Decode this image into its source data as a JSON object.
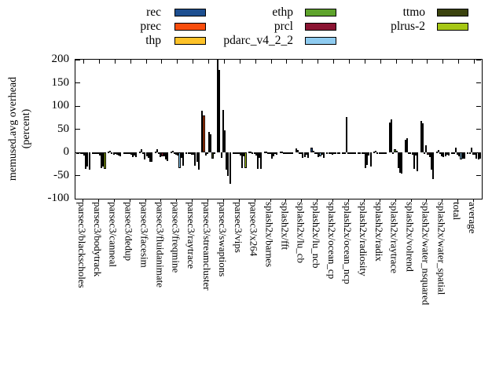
{
  "chart_data": {
    "type": "bar",
    "title": "",
    "ylabel_line1": "memused.avg overhead",
    "ylabel_line2": "(percent)",
    "ylim": [
      -100,
      200
    ],
    "y_ticks": [
      200,
      150,
      100,
      50,
      0,
      -50,
      -100
    ],
    "grid": false,
    "legend_position": "top outside, 3 columns",
    "categories": [
      "parsec3/blackscholes",
      "parsec3/bodytrack",
      "parsec3/canneal",
      "parsec3/dedup",
      "parsec3/facesim",
      "parsec3/fluidanimate",
      "parsec3/freqmine",
      "parsec3/raytrace",
      "parsec3/streamcluster",
      "parsec3/swaptions",
      "parsec3/vips",
      "parsec3/x264",
      "splash2x/barnes",
      "splash2x/fft",
      "splash2x/lu_cb",
      "splash2x/lu_ncb",
      "splash2x/ocean_cp",
      "splash2x/ocean_ncp",
      "splash2x/radiosity",
      "splash2x/radix",
      "splash2x/raytrace",
      "splash2x/volrend",
      "splash2x/water_nsquared",
      "splash2x/water_spatial",
      "total",
      "average"
    ],
    "series": [
      {
        "name": "rec",
        "color": "#1d4f90",
        "values": [
          -1,
          -2,
          1,
          -1,
          2,
          2,
          2,
          -1,
          90,
          200,
          -2,
          2,
          1,
          1,
          8,
          10,
          -1,
          -1,
          -2,
          1,
          64,
          28,
          68,
          2,
          -1,
          -2
        ]
      },
      {
        "name": "prec",
        "color": "#f94d0c",
        "values": [
          -1,
          -2,
          3,
          -2,
          7,
          7,
          3,
          -2,
          80,
          178,
          -2,
          2,
          2,
          2,
          6,
          4,
          -2,
          -1,
          -3,
          4,
          71,
          30,
          62,
          5,
          -2,
          -2
        ]
      },
      {
        "name": "thp",
        "color": "#fdc229",
        "values": [
          -2,
          -3,
          -4,
          -3,
          -4,
          -3,
          -3,
          -3,
          -7,
          -12,
          -3,
          -3,
          -2,
          -1,
          -2,
          -2,
          -2,
          76,
          -3,
          -2,
          -3,
          -2,
          -3,
          -3,
          10,
          10
        ]
      },
      {
        "name": "ethp",
        "color": "#5ea32c",
        "values": [
          -2,
          -4,
          -5,
          -4,
          -15,
          -10,
          -5,
          -5,
          -3,
          92,
          -4,
          -4,
          -3,
          -2,
          -4,
          -4,
          -5,
          -2,
          -4,
          -3,
          7,
          -3,
          15,
          -8,
          -5,
          -5
        ]
      },
      {
        "name": "prcl",
        "color": "#8b1432",
        "values": [
          -7,
          -6,
          -3,
          -5,
          -8,
          -8,
          -6,
          -5,
          45,
          47,
          -6,
          -6,
          -14,
          -3,
          -12,
          -10,
          -3,
          -2,
          -34,
          -2,
          4,
          -5,
          -5,
          -10,
          -8,
          -5
        ]
      },
      {
        "name": "pdarc_v4_2_2",
        "color": "#8ecbf0",
        "values": [
          -35,
          -33,
          -5,
          -10,
          -12,
          -8,
          -33,
          -28,
          39,
          -38,
          -34,
          -36,
          -8,
          -4,
          -10,
          -8,
          -2,
          -4,
          -27,
          -3,
          -33,
          -35,
          -10,
          -8,
          -15,
          -13
        ]
      },
      {
        "name": "ttmo",
        "color": "#3b430e",
        "values": [
          -30,
          -30,
          -6,
          -7,
          -20,
          -15,
          -12,
          -20,
          -13,
          -50,
          -8,
          -12,
          -4,
          -2,
          -5,
          -5,
          -2,
          -1,
          -6,
          -2,
          -44,
          -6,
          -38,
          -5,
          -13,
          -15
        ]
      },
      {
        "name": "plrus-2",
        "color": "#a6c714",
        "values": [
          -37,
          -36,
          -8,
          -10,
          -20,
          -18,
          -28,
          -38,
          -4,
          -68,
          -33,
          -35,
          -5,
          -3,
          -12,
          -12,
          -4,
          -2,
          -30,
          -3,
          -45,
          -40,
          -58,
          -6,
          -14,
          -13
        ]
      }
    ],
    "legend_columns": [
      [
        "rec",
        "prec",
        "thp"
      ],
      [
        "ethp",
        "prcl",
        "pdarc_v4_2_2"
      ],
      [
        "ttmo",
        "plrus-2"
      ]
    ]
  }
}
